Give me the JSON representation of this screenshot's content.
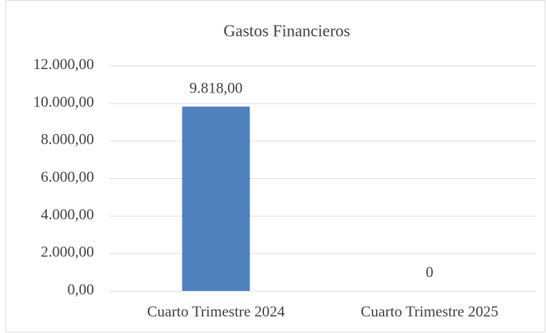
{
  "chart_data": {
    "type": "bar",
    "title": "Gastos Financieros",
    "categories": [
      "Cuarto Trimestre 2024",
      "Cuarto Trimestre 2025"
    ],
    "values": [
      9818,
      0
    ],
    "value_labels": [
      "9.818,00",
      "0"
    ],
    "color": "#4f81bd",
    "ylim": [
      0,
      12000
    ],
    "yticks": [
      {
        "value": 0,
        "label": "0,00"
      },
      {
        "value": 2000,
        "label": "2.000,00"
      },
      {
        "value": 4000,
        "label": "4.000,00"
      },
      {
        "value": 6000,
        "label": "6.000,00"
      },
      {
        "value": 8000,
        "label": "8.000,00"
      },
      {
        "value": 10000,
        "label": "10.000,00"
      },
      {
        "value": 12000,
        "label": "12.000,00"
      }
    ],
    "grid": true
  }
}
